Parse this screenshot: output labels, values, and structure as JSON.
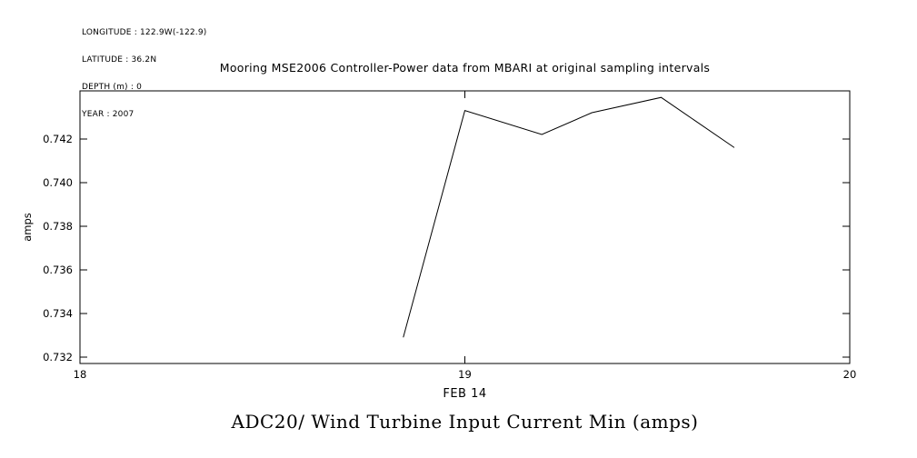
{
  "page": {
    "background": "#ffffff"
  },
  "meta": {
    "lines": [
      "LONGITUDE : 122.9W(-122.9)",
      "LATITUDE : 36.2N",
      "DEPTH (m) : 0",
      "YEAR : 2007"
    ]
  },
  "title": "Mooring MSE2006 Controller-Power data from MBARI at original sampling intervals",
  "bottom_title": "ADC20/ Wind Turbine Input Current Min (amps)",
  "chart_data": {
    "type": "line",
    "title": "Mooring MSE2006 Controller-Power data from MBARI at original sampling intervals",
    "xlabel": "FEB 14",
    "ylabel": "amps",
    "xlim": [
      18,
      20
    ],
    "ylim": [
      0.7317,
      0.7442
    ],
    "xticks": [
      18,
      19,
      20
    ],
    "xtick_labels": [
      "18",
      "19",
      "20"
    ],
    "yticks": [
      0.732,
      0.734,
      0.736,
      0.738,
      0.74,
      0.742
    ],
    "ytick_labels": [
      "0.732",
      "0.734",
      "0.736",
      "0.738",
      "0.740",
      "0.742"
    ],
    "grid": false,
    "legend": null,
    "line_color": "#000000",
    "frame_color": "#000000",
    "series": [
      {
        "name": "ADC20/ Wind Turbine Input Current Min",
        "x": [
          18.84,
          19.0,
          19.2,
          19.33,
          19.51,
          19.7
        ],
        "y": [
          0.7329,
          0.7433,
          0.7422,
          0.7432,
          0.7439,
          0.7416
        ]
      }
    ]
  }
}
